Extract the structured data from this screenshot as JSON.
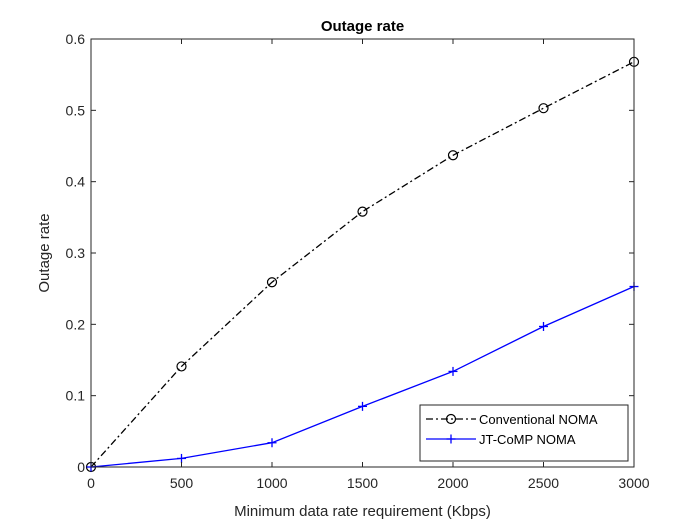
{
  "chart_data": {
    "type": "line",
    "title": "Outage rate",
    "xlabel": "Minimum data rate requirement (Kbps)",
    "ylabel": "Outage rate",
    "xlim": [
      0,
      3000
    ],
    "ylim": [
      0,
      0.6
    ],
    "xticks": [
      0,
      500,
      1000,
      1500,
      2000,
      2500,
      3000
    ],
    "xtick_labels": [
      "0",
      "500",
      "1000",
      "1500",
      "2000",
      "2500",
      "3000"
    ],
    "yticks": [
      0,
      0.1,
      0.2,
      0.3,
      0.4,
      0.5,
      0.6
    ],
    "ytick_labels": [
      "0",
      "0.1",
      "0.2",
      "0.3",
      "0.4",
      "0.5",
      "0.6"
    ],
    "grid": false,
    "legend_position": "bottom-right",
    "x": [
      0,
      500,
      1000,
      1500,
      2000,
      2500,
      3000
    ],
    "series": [
      {
        "name": "Conventional NOMA",
        "values": [
          0.0,
          0.141,
          0.259,
          0.358,
          0.437,
          0.503,
          0.568
        ],
        "color": "#000000",
        "line_style": "dash-dot",
        "marker": "circle"
      },
      {
        "name": "JT-CoMP NOMA",
        "values": [
          0.0,
          0.012,
          0.034,
          0.085,
          0.134,
          0.197,
          0.253
        ],
        "color": "#0000ff",
        "line_style": "solid",
        "marker": "plus"
      }
    ]
  }
}
